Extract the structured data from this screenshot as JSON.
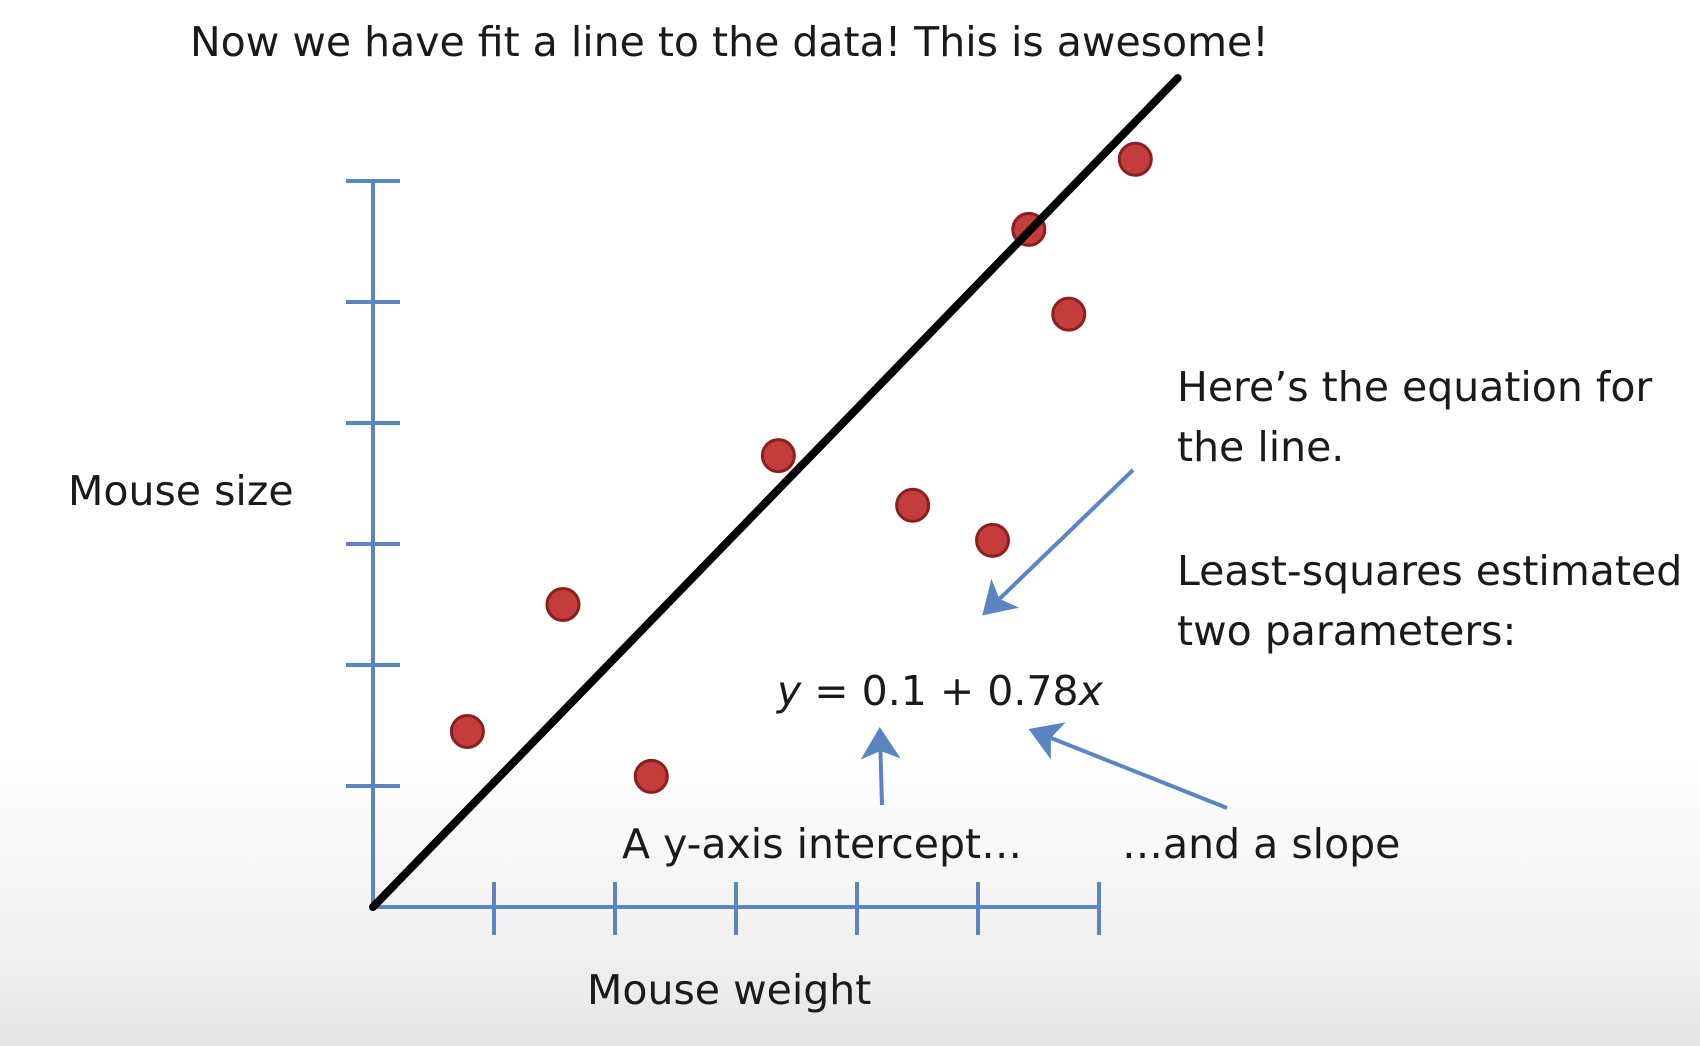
{
  "slide": {
    "title": "Now we have fit a line to the data! This is awesome!"
  },
  "annotations": {
    "equation_note_line1": "Here’s the equation for",
    "equation_note_line2": "the line.",
    "estimate_note_line1": "Least-squares estimated",
    "estimate_note_line2": "two parameters:",
    "equation_y": "y",
    "equation_mid": " = 0.1 + 0.78",
    "equation_x": "x",
    "intercept_label": "A y-axis intercept…",
    "slope_label": "…and a slope"
  },
  "colors": {
    "axis": "#5b85c0",
    "point_fill": "#c43c3c",
    "point_stroke": "#8a1f1f",
    "fit_line": "#000000",
    "arrow": "#5b85c0"
  },
  "chart_data": {
    "type": "scatter",
    "xlabel": "Mouse weight",
    "ylabel": "Mouse size",
    "xlim": [
      0,
      6.5
    ],
    "ylim": [
      0,
      6.2
    ],
    "x_ticks": [
      1,
      2,
      3,
      4,
      5,
      6
    ],
    "y_ticks": [
      1,
      2,
      3,
      4,
      5,
      6
    ],
    "points": [
      {
        "x": 0.78,
        "y": 1.45
      },
      {
        "x": 1.57,
        "y": 2.5
      },
      {
        "x": 2.3,
        "y": 1.08
      },
      {
        "x": 3.35,
        "y": 3.73
      },
      {
        "x": 4.46,
        "y": 3.32
      },
      {
        "x": 5.12,
        "y": 3.03
      },
      {
        "x": 5.42,
        "y": 5.6
      },
      {
        "x": 5.75,
        "y": 4.9
      },
      {
        "x": 6.3,
        "y": 6.18
      }
    ],
    "fit_line": {
      "intercept": 0.1,
      "slope": 0.78,
      "x_range": [
        0,
        6.65
      ]
    }
  }
}
